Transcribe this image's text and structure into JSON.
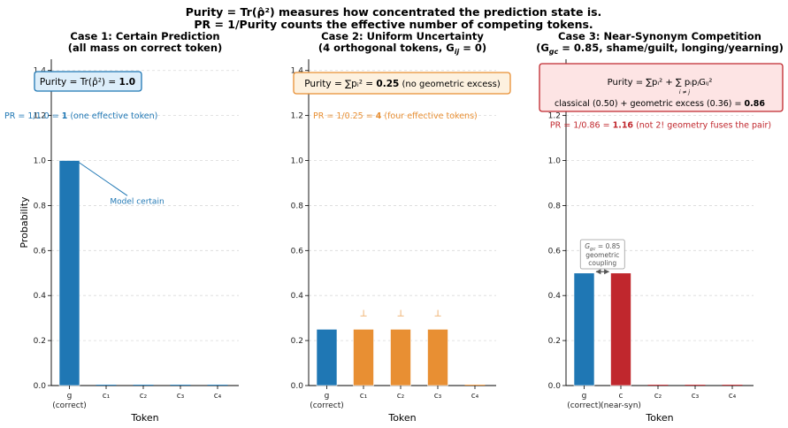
{
  "figure": {
    "title_lines": [
      "Purity = Tr(ρ̂²) measures how concentrated the prediction state is.",
      "PR = 1/Purity counts the effective number of competing tokens."
    ]
  },
  "colors": {
    "blue": "#1f77b4",
    "orange": "#e88f33",
    "red": "#c0272d",
    "blue_box_fill": "#ddeefa",
    "orange_box_fill": "#fdf1df",
    "red_box_fill": "#fde4e4",
    "grey_text": "#555555"
  },
  "chart_data": [
    {
      "type": "bar",
      "title": "Case 1:  Certain Prediction",
      "subtitle": "(all mass on correct token)",
      "xlabel": "Token",
      "ylabel": "Probability",
      "ylim": [
        0,
        1.45
      ],
      "yticks": [
        0.0,
        0.2,
        0.4,
        0.6,
        0.8,
        1.0,
        1.2,
        1.4
      ],
      "grid": true,
      "categories": [
        [
          "g",
          "(correct)"
        ],
        [
          "c₁"
        ],
        [
          "c₂"
        ],
        [
          "c₃"
        ],
        [
          "c₄"
        ]
      ],
      "values": [
        1.0,
        0.0,
        0.0,
        0.0,
        0.0
      ],
      "bar_colors": [
        "blue",
        "blue",
        "blue",
        "blue",
        "blue"
      ],
      "formula_box": {
        "text": "Purity = Tr(ρ̂²) = ",
        "value": "1.0",
        "style": "blue"
      },
      "pr_text": {
        "prefix": "PR = 1/1.0 = ",
        "value": "1",
        "suffix": "  (one effective token)",
        "color": "blue",
        "y": 1.2
      },
      "annotation": {
        "text": "Model certain",
        "point": [
          0,
          1.0
        ],
        "label_at": [
          1.2,
          0.82
        ],
        "color": "blue"
      }
    },
    {
      "type": "bar",
      "title": "Case 2:  Uniform Uncertainty",
      "subtitle": "(4 orthogonal tokens, G",
      "subtitle_sub": "ij",
      "subtitle_end": " = 0)",
      "xlabel": "Token",
      "ylabel": "",
      "ylim": [
        0,
        1.45
      ],
      "yticks": [
        0.0,
        0.2,
        0.4,
        0.6,
        0.8,
        1.0,
        1.2,
        1.4
      ],
      "grid": true,
      "categories": [
        [
          "g",
          "(correct)"
        ],
        [
          "c₁"
        ],
        [
          "c₂"
        ],
        [
          "c₃"
        ],
        [
          "c₄"
        ]
      ],
      "values": [
        0.25,
        0.25,
        0.25,
        0.25,
        0.0
      ],
      "bar_colors": [
        "blue",
        "orange",
        "orange",
        "orange",
        "orange"
      ],
      "orthogonal_marks": {
        "symbol": "⊥",
        "bars": [
          1,
          2,
          3
        ],
        "color": "orange"
      },
      "formula_box": {
        "text": "Purity = ∑pᵢ² = ",
        "value": "0.25",
        "suffix": "  (no geometric excess)",
        "style": "orange"
      },
      "pr_text": {
        "prefix": "PR = 1/0.25 = ",
        "value": "4",
        "suffix": "  (four effective tokens)",
        "color": "orange",
        "y": 1.2
      }
    },
    {
      "type": "bar",
      "title": "Case 3:  Near-Synonym Competition",
      "subtitle": "(G",
      "subtitle_sub": "gc",
      "subtitle_end": " = 0.85, shame/guilt, longing/yearning)",
      "xlabel": "Token",
      "ylabel": "",
      "ylim": [
        0,
        1.45
      ],
      "yticks": [
        0.0,
        0.2,
        0.4,
        0.6,
        0.8,
        1.0,
        1.2,
        1.4
      ],
      "grid": true,
      "categories": [
        [
          "g",
          "(correct)"
        ],
        [
          "c",
          "(near-syn)"
        ],
        [
          "c₂"
        ],
        [
          "c₃"
        ],
        [
          "c₄"
        ]
      ],
      "values": [
        0.5,
        0.5,
        0.0,
        0.0,
        0.0
      ],
      "bar_colors": [
        "blue",
        "red",
        "red",
        "red",
        "red"
      ],
      "formula_box": {
        "line1": "Purity = ∑pᵢ²  +  ∑ pᵢpⱼGᵢⱼ²",
        "line1_sub": "i ≠ j",
        "line2_prefix": "classical (0.50)   +   geometric excess (0.36)  = ",
        "value": "0.86",
        "style": "red"
      },
      "pr_text": {
        "prefix": "PR = 1/0.86 = ",
        "value": "1.16",
        "suffix": "  (not 2! geometry fuses the pair)",
        "color": "red",
        "y": 1.16
      },
      "coupling_box": {
        "lines": [
          "G",
          "geometric",
          "coupling"
        ],
        "line1_sub": "gc",
        "line1_end": " = 0.85"
      }
    }
  ]
}
